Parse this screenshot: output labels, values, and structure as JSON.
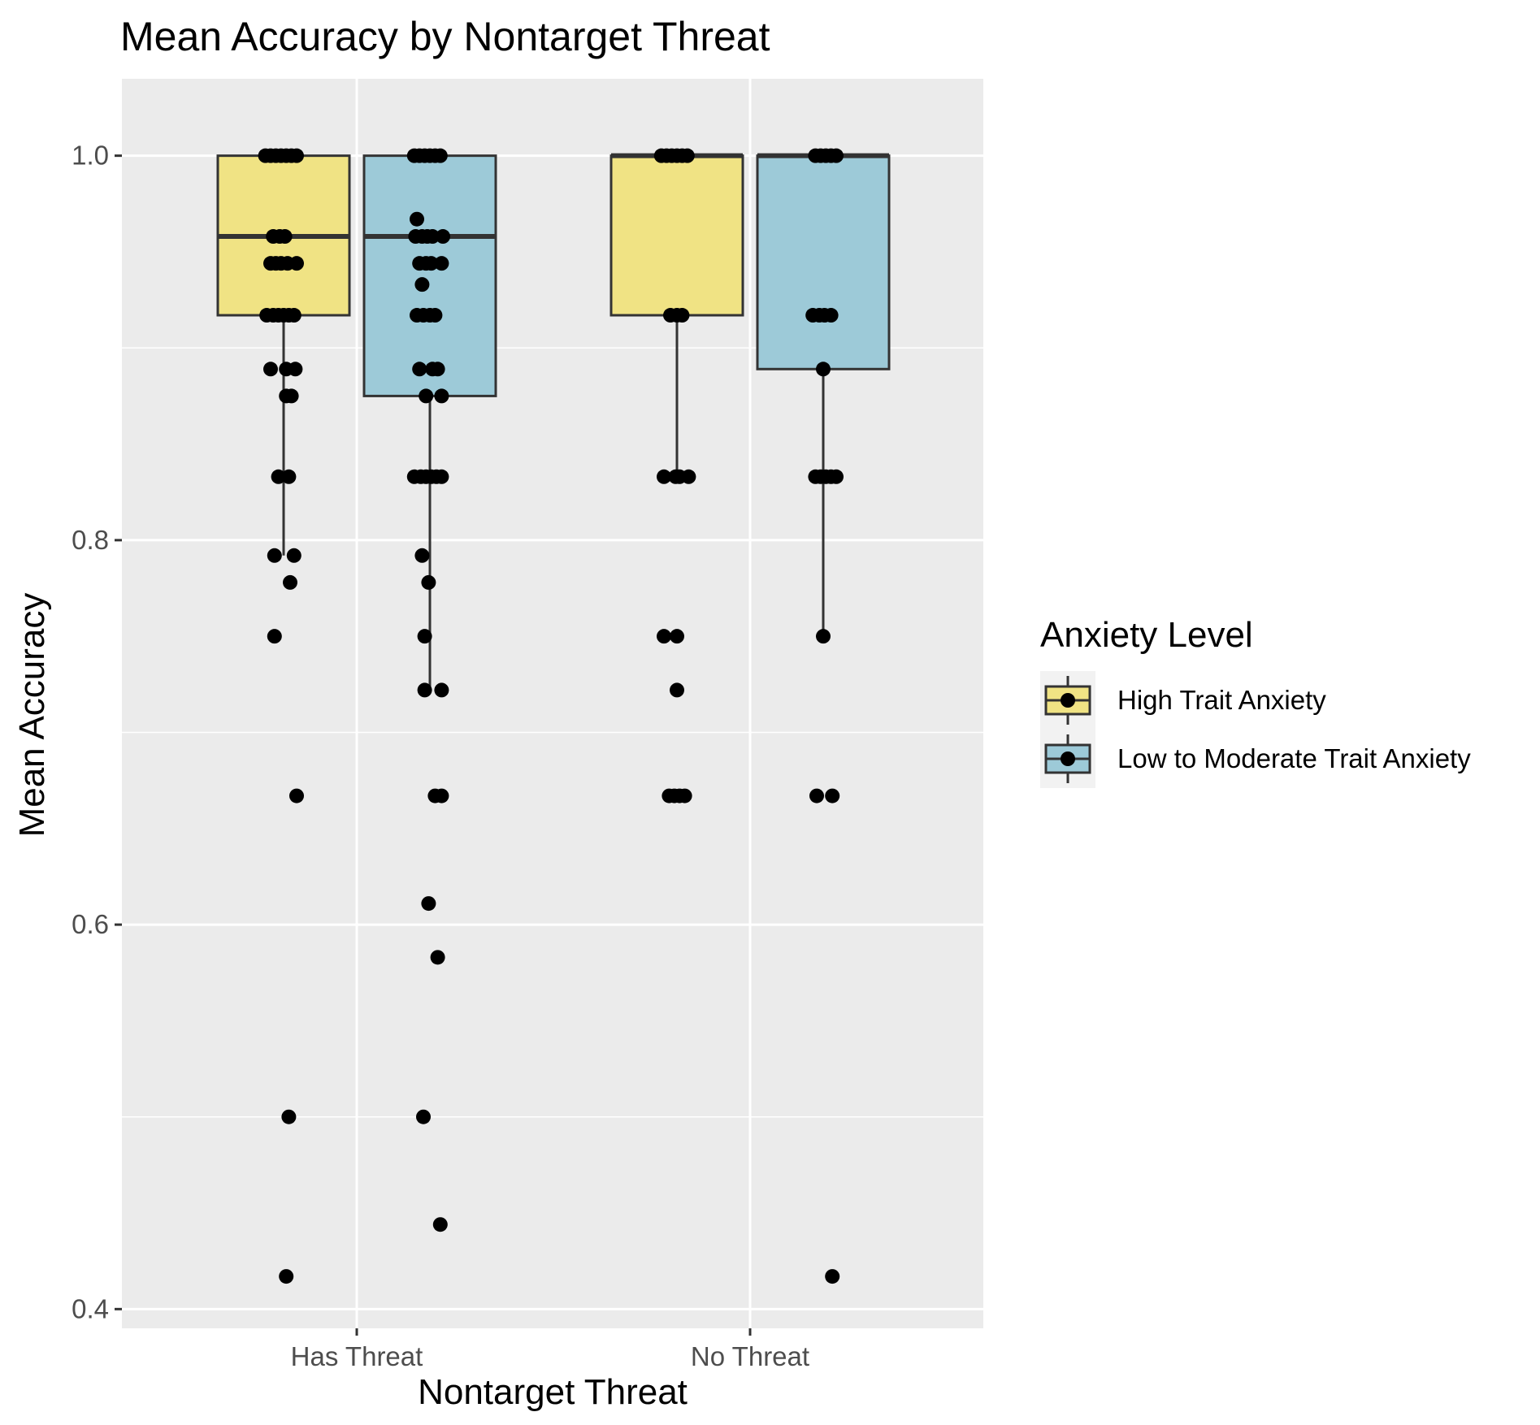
{
  "chart_data": {
    "type": "boxplot",
    "title": "Mean Accuracy by Nontarget Threat",
    "xlabel": "Nontarget Threat",
    "ylabel": "Mean Accuracy",
    "categories": [
      "Has Threat",
      "No Threat"
    ],
    "ylim": [
      0.39,
      1.04
    ],
    "yticks": [
      0.4,
      0.6,
      0.8,
      1.0
    ],
    "ytick_labels": [
      "0.4",
      "0.6",
      "0.8",
      "1.0"
    ],
    "grid": true,
    "legend": {
      "title": "Anxiety Level",
      "position": "right",
      "entries": [
        "High Trait Anxiety",
        "Low to Moderate Trait Anxiety"
      ]
    },
    "colors": {
      "High Trait Anxiety": "#f0e384",
      "Low to Moderate Trait Anxiety": "#9dcad8",
      "panel": "#ebebeb",
      "grid": "#ffffff",
      "box_line": "#333333",
      "point": "#000000"
    },
    "series": [
      {
        "name": "High Trait Anxiety",
        "boxes": [
          {
            "category": "Has Threat",
            "lower_whisker": 0.792,
            "q1": 0.917,
            "median": 0.958,
            "q3": 1.0,
            "upper_whisker": 1.0
          },
          {
            "category": "No Threat",
            "lower_whisker": 0.833,
            "q1": 0.917,
            "median": 1.0,
            "q3": 1.0,
            "upper_whisker": 1.0
          }
        ],
        "points": [
          {
            "category": "Has Threat",
            "y": 1.0,
            "jitter": -0.14
          },
          {
            "category": "Has Threat",
            "y": 1.0,
            "jitter": -0.1
          },
          {
            "category": "Has Threat",
            "y": 1.0,
            "jitter": -0.06
          },
          {
            "category": "Has Threat",
            "y": 1.0,
            "jitter": -0.02
          },
          {
            "category": "Has Threat",
            "y": 1.0,
            "jitter": 0.02
          },
          {
            "category": "Has Threat",
            "y": 1.0,
            "jitter": 0.06
          },
          {
            "category": "Has Threat",
            "y": 1.0,
            "jitter": 0.1
          },
          {
            "category": "Has Threat",
            "y": 0.958,
            "jitter": -0.08
          },
          {
            "category": "Has Threat",
            "y": 0.958,
            "jitter": -0.03
          },
          {
            "category": "Has Threat",
            "y": 0.958,
            "jitter": 0.01
          },
          {
            "category": "Has Threat",
            "y": 0.944,
            "jitter": -0.1
          },
          {
            "category": "Has Threat",
            "y": 0.944,
            "jitter": -0.06
          },
          {
            "category": "Has Threat",
            "y": 0.944,
            "jitter": -0.02
          },
          {
            "category": "Has Threat",
            "y": 0.944,
            "jitter": 0.03
          },
          {
            "category": "Has Threat",
            "y": 0.944,
            "jitter": 0.1
          },
          {
            "category": "Has Threat",
            "y": 0.917,
            "jitter": -0.13
          },
          {
            "category": "Has Threat",
            "y": 0.917,
            "jitter": -0.08
          },
          {
            "category": "Has Threat",
            "y": 0.917,
            "jitter": -0.04
          },
          {
            "category": "Has Threat",
            "y": 0.917,
            "jitter": 0.0
          },
          {
            "category": "Has Threat",
            "y": 0.917,
            "jitter": 0.04
          },
          {
            "category": "Has Threat",
            "y": 0.917,
            "jitter": 0.08
          },
          {
            "category": "Has Threat",
            "y": 0.889,
            "jitter": -0.1
          },
          {
            "category": "Has Threat",
            "y": 0.889,
            "jitter": 0.02
          },
          {
            "category": "Has Threat",
            "y": 0.889,
            "jitter": 0.09
          },
          {
            "category": "Has Threat",
            "y": 0.875,
            "jitter": 0.02
          },
          {
            "category": "Has Threat",
            "y": 0.875,
            "jitter": 0.06
          },
          {
            "category": "Has Threat",
            "y": 0.833,
            "jitter": -0.04
          },
          {
            "category": "Has Threat",
            "y": 0.833,
            "jitter": 0.04
          },
          {
            "category": "Has Threat",
            "y": 0.792,
            "jitter": -0.07
          },
          {
            "category": "Has Threat",
            "y": 0.792,
            "jitter": 0.08
          },
          {
            "category": "Has Threat",
            "y": 0.778,
            "jitter": 0.05
          },
          {
            "category": "Has Threat",
            "y": 0.75,
            "jitter": -0.07
          },
          {
            "category": "Has Threat",
            "y": 0.667,
            "jitter": 0.1
          },
          {
            "category": "Has Threat",
            "y": 0.5,
            "jitter": 0.04
          },
          {
            "category": "Has Threat",
            "y": 0.417,
            "jitter": 0.02
          },
          {
            "category": "No Threat",
            "y": 1.0,
            "jitter": -0.12
          },
          {
            "category": "No Threat",
            "y": 1.0,
            "jitter": -0.08
          },
          {
            "category": "No Threat",
            "y": 1.0,
            "jitter": -0.04
          },
          {
            "category": "No Threat",
            "y": 1.0,
            "jitter": 0.0
          },
          {
            "category": "No Threat",
            "y": 1.0,
            "jitter": 0.04
          },
          {
            "category": "No Threat",
            "y": 1.0,
            "jitter": 0.08
          },
          {
            "category": "No Threat",
            "y": 0.917,
            "jitter": -0.05
          },
          {
            "category": "No Threat",
            "y": 0.917,
            "jitter": 0.0
          },
          {
            "category": "No Threat",
            "y": 0.917,
            "jitter": 0.04
          },
          {
            "category": "No Threat",
            "y": 0.833,
            "jitter": -0.1
          },
          {
            "category": "No Threat",
            "y": 0.833,
            "jitter": -0.01
          },
          {
            "category": "No Threat",
            "y": 0.833,
            "jitter": 0.02
          },
          {
            "category": "No Threat",
            "y": 0.833,
            "jitter": 0.09
          },
          {
            "category": "No Threat",
            "y": 0.75,
            "jitter": -0.1
          },
          {
            "category": "No Threat",
            "y": 0.75,
            "jitter": 0.0
          },
          {
            "category": "No Threat",
            "y": 0.722,
            "jitter": 0.0
          },
          {
            "category": "No Threat",
            "y": 0.667,
            "jitter": -0.06
          },
          {
            "category": "No Threat",
            "y": 0.667,
            "jitter": -0.02
          },
          {
            "category": "No Threat",
            "y": 0.667,
            "jitter": 0.02
          },
          {
            "category": "No Threat",
            "y": 0.667,
            "jitter": 0.06
          }
        ]
      },
      {
        "name": "Low to Moderate Trait Anxiety",
        "boxes": [
          {
            "category": "Has Threat",
            "lower_whisker": 0.722,
            "q1": 0.875,
            "median": 0.958,
            "q3": 1.0,
            "upper_whisker": 1.0
          },
          {
            "category": "No Threat",
            "lower_whisker": 0.75,
            "q1": 0.889,
            "median": 1.0,
            "q3": 1.0,
            "upper_whisker": 1.0
          }
        ],
        "points": [
          {
            "category": "Has Threat",
            "y": 1.0,
            "jitter": -0.12
          },
          {
            "category": "Has Threat",
            "y": 1.0,
            "jitter": -0.08
          },
          {
            "category": "Has Threat",
            "y": 1.0,
            "jitter": -0.04
          },
          {
            "category": "Has Threat",
            "y": 1.0,
            "jitter": 0.0
          },
          {
            "category": "Has Threat",
            "y": 1.0,
            "jitter": 0.04
          },
          {
            "category": "Has Threat",
            "y": 1.0,
            "jitter": 0.08
          },
          {
            "category": "Has Threat",
            "y": 0.967,
            "jitter": -0.1
          },
          {
            "category": "Has Threat",
            "y": 0.958,
            "jitter": -0.11
          },
          {
            "category": "Has Threat",
            "y": 0.958,
            "jitter": -0.06
          },
          {
            "category": "Has Threat",
            "y": 0.958,
            "jitter": -0.02
          },
          {
            "category": "Has Threat",
            "y": 0.958,
            "jitter": 0.02
          },
          {
            "category": "Has Threat",
            "y": 0.958,
            "jitter": 0.1
          },
          {
            "category": "Has Threat",
            "y": 0.944,
            "jitter": -0.08
          },
          {
            "category": "Has Threat",
            "y": 0.944,
            "jitter": -0.03
          },
          {
            "category": "Has Threat",
            "y": 0.944,
            "jitter": 0.01
          },
          {
            "category": "Has Threat",
            "y": 0.944,
            "jitter": 0.09
          },
          {
            "category": "Has Threat",
            "y": 0.933,
            "jitter": -0.06
          },
          {
            "category": "Has Threat",
            "y": 0.917,
            "jitter": -0.1
          },
          {
            "category": "Has Threat",
            "y": 0.917,
            "jitter": -0.05
          },
          {
            "category": "Has Threat",
            "y": 0.917,
            "jitter": 0.0
          },
          {
            "category": "Has Threat",
            "y": 0.917,
            "jitter": 0.04
          },
          {
            "category": "Has Threat",
            "y": 0.889,
            "jitter": -0.08
          },
          {
            "category": "Has Threat",
            "y": 0.889,
            "jitter": 0.02
          },
          {
            "category": "Has Threat",
            "y": 0.889,
            "jitter": 0.06
          },
          {
            "category": "Has Threat",
            "y": 0.875,
            "jitter": -0.03
          },
          {
            "category": "Has Threat",
            "y": 0.875,
            "jitter": 0.09
          },
          {
            "category": "Has Threat",
            "y": 0.833,
            "jitter": -0.12
          },
          {
            "category": "Has Threat",
            "y": 0.833,
            "jitter": -0.07
          },
          {
            "category": "Has Threat",
            "y": 0.833,
            "jitter": -0.03
          },
          {
            "category": "Has Threat",
            "y": 0.833,
            "jitter": 0.01
          },
          {
            "category": "Has Threat",
            "y": 0.833,
            "jitter": 0.05
          },
          {
            "category": "Has Threat",
            "y": 0.833,
            "jitter": 0.09
          },
          {
            "category": "Has Threat",
            "y": 0.792,
            "jitter": -0.06
          },
          {
            "category": "Has Threat",
            "y": 0.778,
            "jitter": -0.01
          },
          {
            "category": "Has Threat",
            "y": 0.75,
            "jitter": -0.04
          },
          {
            "category": "Has Threat",
            "y": 0.722,
            "jitter": -0.04
          },
          {
            "category": "Has Threat",
            "y": 0.722,
            "jitter": 0.09
          },
          {
            "category": "Has Threat",
            "y": 0.667,
            "jitter": 0.04
          },
          {
            "category": "Has Threat",
            "y": 0.667,
            "jitter": 0.09
          },
          {
            "category": "Has Threat",
            "y": 0.611,
            "jitter": -0.01
          },
          {
            "category": "Has Threat",
            "y": 0.583,
            "jitter": 0.06
          },
          {
            "category": "Has Threat",
            "y": 0.5,
            "jitter": -0.05
          },
          {
            "category": "Has Threat",
            "y": 0.444,
            "jitter": 0.08
          },
          {
            "category": "No Threat",
            "y": 1.0,
            "jitter": -0.06
          },
          {
            "category": "No Threat",
            "y": 1.0,
            "jitter": -0.02
          },
          {
            "category": "No Threat",
            "y": 1.0,
            "jitter": 0.02
          },
          {
            "category": "No Threat",
            "y": 1.0,
            "jitter": 0.06
          },
          {
            "category": "No Threat",
            "y": 1.0,
            "jitter": 0.1
          },
          {
            "category": "No Threat",
            "y": 0.917,
            "jitter": -0.08
          },
          {
            "category": "No Threat",
            "y": 0.917,
            "jitter": -0.03
          },
          {
            "category": "No Threat",
            "y": 0.917,
            "jitter": 0.01
          },
          {
            "category": "No Threat",
            "y": 0.917,
            "jitter": 0.06
          },
          {
            "category": "No Threat",
            "y": 0.889,
            "jitter": 0.0
          },
          {
            "category": "No Threat",
            "y": 0.833,
            "jitter": -0.06
          },
          {
            "category": "No Threat",
            "y": 0.833,
            "jitter": -0.02
          },
          {
            "category": "No Threat",
            "y": 0.833,
            "jitter": 0.02
          },
          {
            "category": "No Threat",
            "y": 0.833,
            "jitter": 0.06
          },
          {
            "category": "No Threat",
            "y": 0.833,
            "jitter": 0.1
          },
          {
            "category": "No Threat",
            "y": 0.75,
            "jitter": 0.0
          },
          {
            "category": "No Threat",
            "y": 0.667,
            "jitter": -0.05
          },
          {
            "category": "No Threat",
            "y": 0.667,
            "jitter": 0.07
          },
          {
            "category": "No Threat",
            "y": 0.417,
            "jitter": 0.07
          }
        ]
      }
    ]
  }
}
